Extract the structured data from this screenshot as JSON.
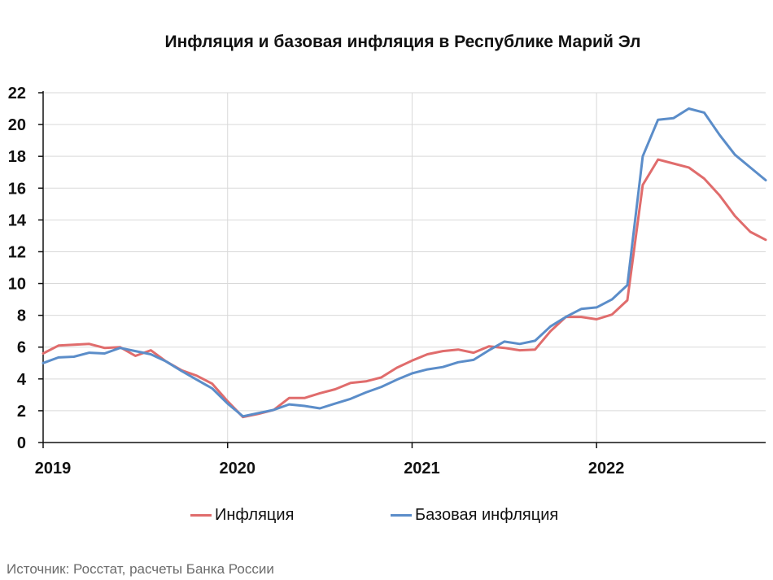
{
  "chart_data": {
    "type": "line",
    "title": "Инфляция и базовая инфляция в Республике Марий Эл",
    "xlabel": "",
    "ylabel": "",
    "ylim": [
      0,
      22
    ],
    "yticks": [
      0,
      2,
      4,
      6,
      8,
      10,
      12,
      14,
      16,
      18,
      20,
      22
    ],
    "xticks": [
      "2019",
      "2020",
      "2021",
      "2022"
    ],
    "grid": true,
    "legend": "bottom",
    "series": [
      {
        "name": "Инфляция",
        "color": "#e06c6c",
        "values": [
          5.6,
          6.1,
          6.15,
          6.2,
          5.95,
          6.0,
          5.45,
          5.8,
          5.1,
          4.55,
          4.2,
          3.7,
          2.6,
          1.6,
          1.8,
          2.05,
          2.8,
          2.8,
          3.1,
          3.35,
          3.75,
          3.85,
          4.1,
          4.7,
          5.15,
          5.55,
          5.75,
          5.85,
          5.65,
          6.05,
          5.95,
          5.8,
          5.85,
          7.0,
          7.9,
          7.9,
          7.75,
          8.05,
          8.95,
          16.2,
          17.8,
          17.55,
          17.3,
          16.6,
          15.55,
          14.25,
          13.25,
          12.75
        ]
      },
      {
        "name": "Базовая инфляция",
        "color": "#5b8dc9",
        "values": [
          5.0,
          5.35,
          5.4,
          5.65,
          5.6,
          5.95,
          5.75,
          5.55,
          5.1,
          4.5,
          3.95,
          3.4,
          2.45,
          1.65,
          1.85,
          2.05,
          2.4,
          2.3,
          2.15,
          2.45,
          2.75,
          3.15,
          3.5,
          3.95,
          4.35,
          4.6,
          4.75,
          5.05,
          5.2,
          5.8,
          6.35,
          6.2,
          6.4,
          7.3,
          7.9,
          8.4,
          8.5,
          9.0,
          9.9,
          18.0,
          20.3,
          20.4,
          21.0,
          20.75,
          19.35,
          18.1,
          17.3,
          16.5
        ]
      }
    ]
  },
  "source_note": "Источник: Росстат, расчеты Банка России"
}
